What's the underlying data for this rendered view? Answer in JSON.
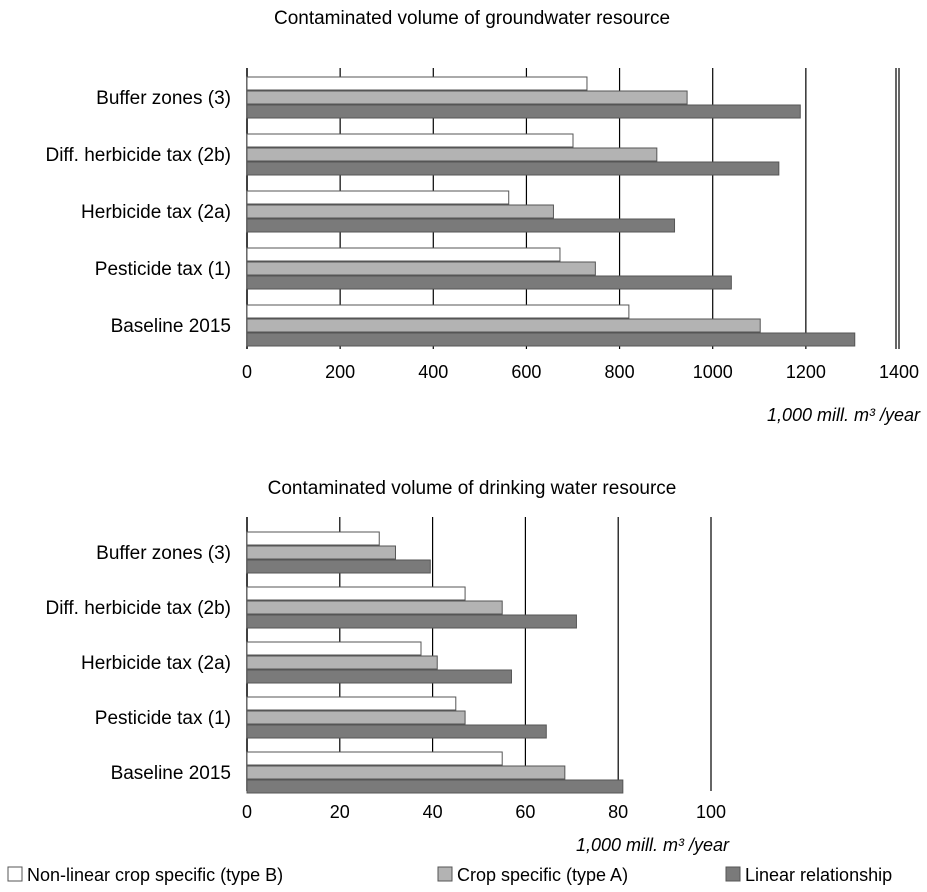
{
  "chart_data": [
    {
      "type": "bar",
      "orientation": "horizontal",
      "title": "Contaminated volume of groundwater resource",
      "unit_label": "1,000 mill. m³ /year",
      "categories": [
        "Buffer zones (3)",
        "Diff. herbicide tax (2b)",
        "Herbicide tax (2a)",
        "Pesticide tax (1)",
        "Baseline 2015"
      ],
      "series": [
        {
          "name": "Non-linear crop specific (type B)",
          "values": [
            730,
            700,
            562,
            672,
            820
          ]
        },
        {
          "name": "Crop specific (type A)",
          "values": [
            945,
            880,
            658,
            748,
            1102
          ]
        },
        {
          "name": "Linear relationship",
          "values": [
            1188,
            1142,
            918,
            1040,
            1305
          ]
        }
      ],
      "xlim": [
        0,
        1400
      ],
      "ticks": [
        0,
        200,
        400,
        600,
        800,
        1000,
        1200,
        1400
      ],
      "tick_labels": [
        "0",
        "200",
        "400",
        "600",
        "800",
        "1000",
        "1200",
        "1400"
      ],
      "grid": "vertical"
    },
    {
      "type": "bar",
      "orientation": "horizontal",
      "title": "Contaminated volume of drinking water resource",
      "unit_label": "1,000 mill. m³ /year",
      "categories": [
        "Buffer zones (3)",
        "Diff. herbicide tax (2b)",
        "Herbicide tax (2a)",
        "Pesticide tax (1)",
        "Baseline 2015"
      ],
      "series": [
        {
          "name": "Non-linear crop specific (type B)",
          "values": [
            28.5,
            47,
            37.5,
            45,
            55
          ]
        },
        {
          "name": "Crop specific (type A)",
          "values": [
            32,
            55,
            41,
            47,
            68.5
          ]
        },
        {
          "name": "Linear relationship",
          "values": [
            39.5,
            71,
            57,
            64.5,
            81
          ]
        }
      ],
      "xlim": [
        0,
        100
      ],
      "ticks": [
        0,
        20,
        40,
        60,
        80,
        100
      ],
      "tick_labels": [
        "0",
        "20",
        "40",
        "60",
        "80",
        "100"
      ],
      "grid": "vertical"
    }
  ],
  "legend": [
    {
      "label": "Non-linear crop specific (type B)",
      "color": "#ffffff"
    },
    {
      "label": "Crop specific (type A)",
      "color": "#b3b3b3"
    },
    {
      "label": "Linear relationship",
      "color": "#7a7a7a"
    }
  ],
  "colors": {
    "series": [
      "#ffffff",
      "#b3b3b3",
      "#7a7a7a"
    ],
    "bar_stroke": "#555555",
    "grid": "#000000"
  }
}
